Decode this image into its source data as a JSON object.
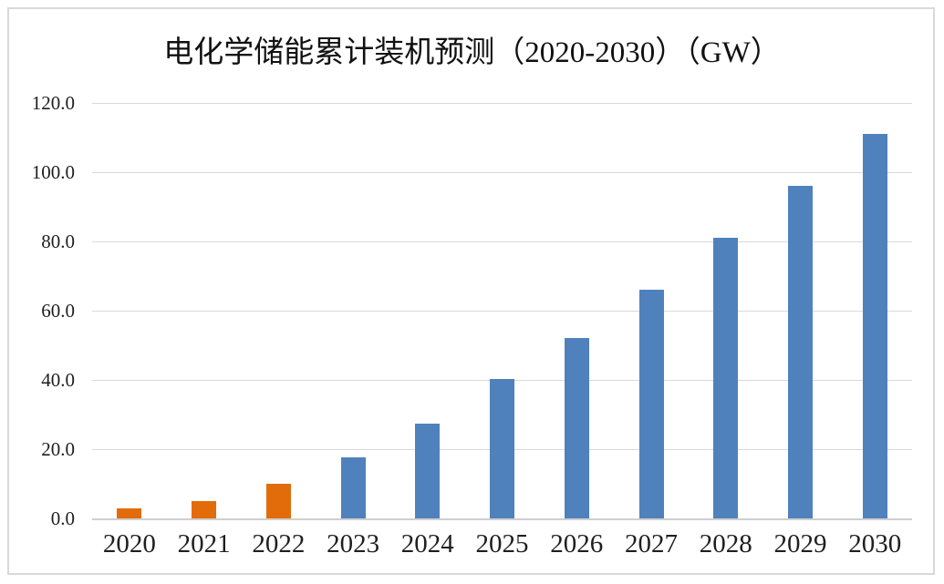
{
  "window": {
    "background_color": "#ffffff",
    "border_color": "#d9d9d9"
  },
  "chart_data": {
    "type": "bar",
    "title": "电化学储能累计装机预测（2020-2030）（GW）",
    "categories": [
      "2020",
      "2021",
      "2022",
      "2023",
      "2024",
      "2025",
      "2026",
      "2027",
      "2028",
      "2029",
      "2030"
    ],
    "values": [
      3.0,
      5.0,
      10.0,
      17.6,
      27.5,
      40.2,
      52.0,
      66.0,
      81.0,
      96.0,
      111.0
    ],
    "bar_colors": [
      "#E36C0A",
      "#E36C0A",
      "#E36C0A",
      "#4F81BD",
      "#4F81BD",
      "#4F81BD",
      "#4F81BD",
      "#4F81BD",
      "#4F81BD",
      "#4F81BD",
      "#4F81BD"
    ],
    "xlabel": "",
    "ylabel": "",
    "ylim": [
      0,
      120
    ],
    "yticks": [
      0,
      20,
      40,
      60,
      80,
      100,
      120
    ],
    "ytick_labels": [
      "0.0",
      "20.0",
      "40.0",
      "60.0",
      "80.0",
      "100.0",
      "120.0"
    ],
    "grid": true,
    "gridline_color": "#d9d9d9",
    "axis_line_color": "#cfcfcf",
    "legend_position": "none",
    "text_color": "#1f1f1f"
  }
}
